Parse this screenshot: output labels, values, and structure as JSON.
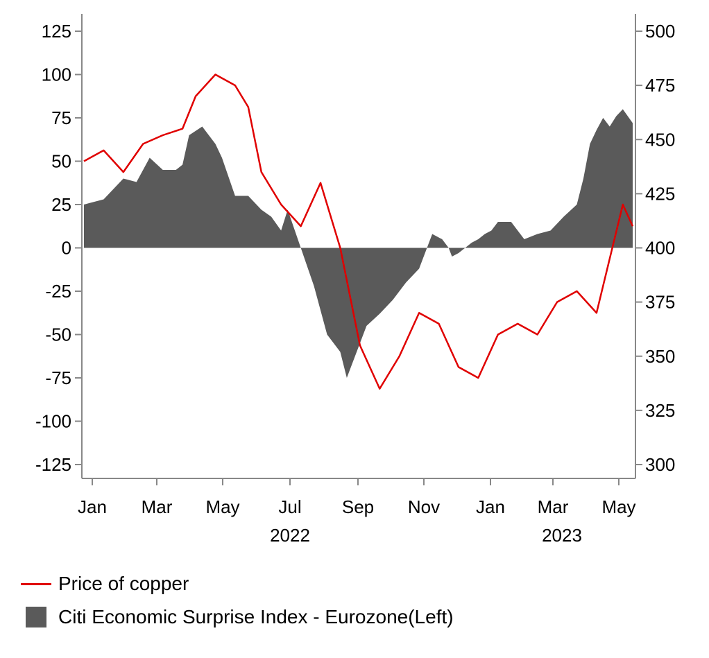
{
  "chart_data": {
    "type": "area+line",
    "title": "",
    "left_axis": {
      "ylim": [
        -125,
        125
      ],
      "ticks": [
        "125",
        "100",
        "75",
        "50",
        "25",
        "0",
        "-25",
        "-50",
        "-75",
        "-100",
        "-125"
      ]
    },
    "right_axis": {
      "ylim": [
        300,
        500
      ],
      "ticks": [
        "500",
        "475",
        "450",
        "425",
        "400",
        "375",
        "350",
        "325",
        "300"
      ]
    },
    "x_axis": {
      "month_labels": [
        "Jan",
        "Mar",
        "May",
        "Jul",
        "Sep",
        "Nov",
        "Jan",
        "Mar",
        "May"
      ],
      "year_labels": [
        "2022",
        "2023"
      ]
    },
    "series": [
      {
        "name": "Citi Economic Surprise Index - Eurozone(Left)",
        "kind": "area",
        "axis": "left",
        "color": "#5a5a5a",
        "x": [
          0,
          0.3,
          0.6,
          0.8,
          1.0,
          1.2,
          1.4,
          1.5,
          1.6,
          1.8,
          2.0,
          2.1,
          2.3,
          2.5,
          2.7,
          2.85,
          3.0,
          3.1,
          3.3,
          3.5,
          3.7,
          3.9,
          4.0,
          4.1,
          4.3,
          4.5,
          4.7,
          4.9,
          5.1,
          5.3,
          5.45,
          5.55,
          5.6,
          5.7,
          5.8,
          5.9,
          6.0,
          6.1,
          6.2,
          6.3,
          6.5,
          6.7,
          6.9,
          7.1,
          7.3,
          7.5,
          7.6,
          7.7,
          7.8,
          7.9,
          8.0,
          8.1,
          8.2,
          8.35
        ],
        "y": [
          25,
          28,
          40,
          38,
          52,
          45,
          45,
          48,
          65,
          70,
          60,
          52,
          30,
          30,
          22,
          18,
          10,
          22,
          0,
          -22,
          -50,
          -60,
          -75,
          -65,
          -45,
          -38,
          -30,
          -20,
          -12,
          8,
          5,
          0,
          -5,
          -3,
          0,
          3,
          5,
          8,
          10,
          15,
          15,
          5,
          8,
          10,
          18,
          25,
          40,
          60,
          68,
          75,
          70,
          76,
          80,
          72
        ]
      },
      {
        "name": "Price of copper",
        "kind": "line",
        "axis": "right",
        "color": "#e00000",
        "x": [
          0,
          0.3,
          0.6,
          0.9,
          1.2,
          1.5,
          1.7,
          2.0,
          2.3,
          2.5,
          2.7,
          3.0,
          3.3,
          3.6,
          3.9,
          4.2,
          4.5,
          4.8,
          5.1,
          5.4,
          5.7,
          6.0,
          6.3,
          6.6,
          6.9,
          7.2,
          7.5,
          7.8,
          8.0,
          8.2,
          8.35
        ],
        "y": [
          440,
          445,
          435,
          448,
          452,
          455,
          470,
          480,
          475,
          465,
          435,
          420,
          410,
          430,
          400,
          355,
          335,
          350,
          370,
          365,
          345,
          340,
          360,
          365,
          360,
          375,
          380,
          370,
          395,
          420,
          410
        ]
      }
    ]
  }
}
